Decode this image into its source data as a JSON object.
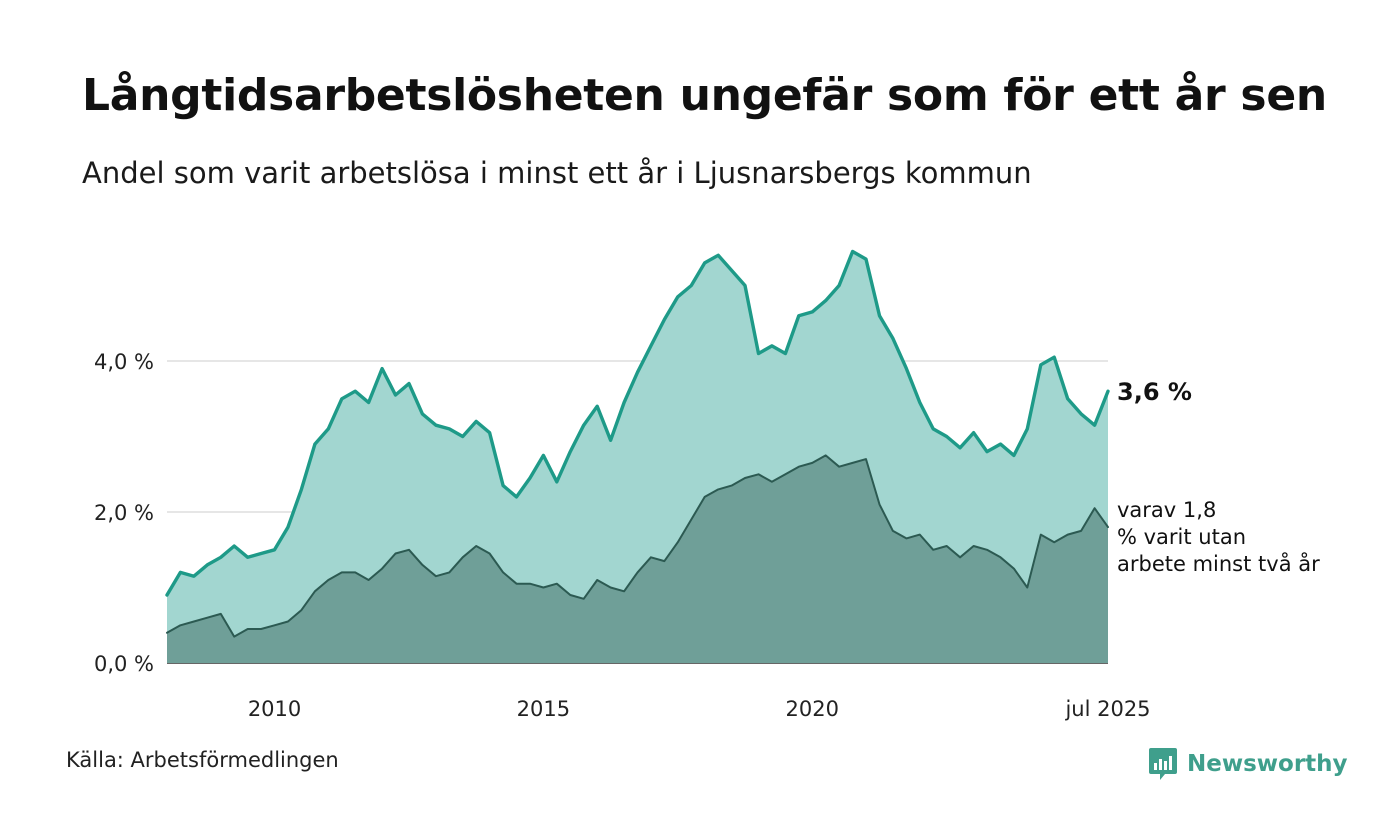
{
  "colors": {
    "total_line": "#1e9a88",
    "total_area": "#a2d6d0",
    "long_line": "#2c5a52",
    "long_area": "#6f9f98",
    "grid": "#dddddd",
    "axis": "#333333",
    "brand": "#3f9f8c"
  },
  "footer": {
    "source": "Källa: Arbetsförmedlingen",
    "brand": "Newsworthy",
    "brand_icon": "newsworthy-logo-icon"
  },
  "chart_data": {
    "type": "area",
    "title": "Långtidsarbetslösheten ungefär som för ett år sen",
    "subtitle": "Andel som varit arbetslösa i minst ett år i Ljusnarsbergs kommun",
    "xlabel": "",
    "ylabel": "",
    "x_range": [
      "2008-01",
      "2025-07"
    ],
    "ylim": [
      0,
      6
    ],
    "y_ticks": [
      {
        "value": 0,
        "label": "0,0 %"
      },
      {
        "value": 2,
        "label": "2,0 %"
      },
      {
        "value": 4,
        "label": "4,0 %"
      }
    ],
    "x_ticks": [
      {
        "value": "2010-01",
        "label": "2010"
      },
      {
        "value": "2015-01",
        "label": "2015"
      },
      {
        "value": "2020-01",
        "label": "2020"
      },
      {
        "value": "2025-07",
        "label": "jul 2025"
      }
    ],
    "grid": true,
    "legend": "none",
    "series": [
      {
        "key": "total",
        "label": "3,6 %",
        "points": [
          [
            "2008-01",
            0.9
          ],
          [
            "2008-04",
            1.2
          ],
          [
            "2008-07",
            1.15
          ],
          [
            "2008-10",
            1.3
          ],
          [
            "2009-01",
            1.4
          ],
          [
            "2009-04",
            1.55
          ],
          [
            "2009-07",
            1.4
          ],
          [
            "2009-10",
            1.45
          ],
          [
            "2010-01",
            1.5
          ],
          [
            "2010-04",
            1.8
          ],
          [
            "2010-07",
            2.3
          ],
          [
            "2010-10",
            2.9
          ],
          [
            "2011-01",
            3.1
          ],
          [
            "2011-04",
            3.5
          ],
          [
            "2011-07",
            3.6
          ],
          [
            "2011-10",
            3.45
          ],
          [
            "2012-01",
            3.9
          ],
          [
            "2012-04",
            3.55
          ],
          [
            "2012-07",
            3.7
          ],
          [
            "2012-10",
            3.3
          ],
          [
            "2013-01",
            3.15
          ],
          [
            "2013-04",
            3.1
          ],
          [
            "2013-07",
            3.0
          ],
          [
            "2013-10",
            3.2
          ],
          [
            "2014-01",
            3.05
          ],
          [
            "2014-04",
            2.35
          ],
          [
            "2014-07",
            2.2
          ],
          [
            "2014-10",
            2.45
          ],
          [
            "2015-01",
            2.75
          ],
          [
            "2015-04",
            2.4
          ],
          [
            "2015-07",
            2.8
          ],
          [
            "2015-10",
            3.15
          ],
          [
            "2016-01",
            3.4
          ],
          [
            "2016-04",
            2.95
          ],
          [
            "2016-07",
            3.45
          ],
          [
            "2016-10",
            3.85
          ],
          [
            "2017-01",
            4.2
          ],
          [
            "2017-04",
            4.55
          ],
          [
            "2017-07",
            4.85
          ],
          [
            "2017-10",
            5.0
          ],
          [
            "2018-01",
            5.3
          ],
          [
            "2018-04",
            5.4
          ],
          [
            "2018-07",
            5.2
          ],
          [
            "2018-10",
            5.0
          ],
          [
            "2019-01",
            4.1
          ],
          [
            "2019-04",
            4.2
          ],
          [
            "2019-07",
            4.1
          ],
          [
            "2019-10",
            4.6
          ],
          [
            "2020-01",
            4.65
          ],
          [
            "2020-04",
            4.8
          ],
          [
            "2020-07",
            5.0
          ],
          [
            "2020-10",
            5.45
          ],
          [
            "2021-01",
            5.35
          ],
          [
            "2021-04",
            4.6
          ],
          [
            "2021-07",
            4.3
          ],
          [
            "2021-10",
            3.9
          ],
          [
            "2022-01",
            3.45
          ],
          [
            "2022-04",
            3.1
          ],
          [
            "2022-07",
            3.0
          ],
          [
            "2022-10",
            2.85
          ],
          [
            "2023-01",
            3.05
          ],
          [
            "2023-04",
            2.8
          ],
          [
            "2023-07",
            2.9
          ],
          [
            "2023-10",
            2.75
          ],
          [
            "2024-01",
            3.1
          ],
          [
            "2024-04",
            3.95
          ],
          [
            "2024-07",
            4.05
          ],
          [
            "2024-10",
            3.5
          ],
          [
            "2025-01",
            3.3
          ],
          [
            "2025-04",
            3.15
          ],
          [
            "2025-07",
            3.6
          ]
        ]
      },
      {
        "key": "long",
        "label": "varav 1,8 % varit utan arbete minst två år",
        "points": [
          [
            "2008-01",
            0.4
          ],
          [
            "2008-04",
            0.5
          ],
          [
            "2008-07",
            0.55
          ],
          [
            "2008-10",
            0.6
          ],
          [
            "2009-01",
            0.65
          ],
          [
            "2009-04",
            0.35
          ],
          [
            "2009-07",
            0.45
          ],
          [
            "2009-10",
            0.45
          ],
          [
            "2010-01",
            0.5
          ],
          [
            "2010-04",
            0.55
          ],
          [
            "2010-07",
            0.7
          ],
          [
            "2010-10",
            0.95
          ],
          [
            "2011-01",
            1.1
          ],
          [
            "2011-04",
            1.2
          ],
          [
            "2011-07",
            1.2
          ],
          [
            "2011-10",
            1.1
          ],
          [
            "2012-01",
            1.25
          ],
          [
            "2012-04",
            1.45
          ],
          [
            "2012-07",
            1.5
          ],
          [
            "2012-10",
            1.3
          ],
          [
            "2013-01",
            1.15
          ],
          [
            "2013-04",
            1.2
          ],
          [
            "2013-07",
            1.4
          ],
          [
            "2013-10",
            1.55
          ],
          [
            "2014-01",
            1.45
          ],
          [
            "2014-04",
            1.2
          ],
          [
            "2014-07",
            1.05
          ],
          [
            "2014-10",
            1.05
          ],
          [
            "2015-01",
            1.0
          ],
          [
            "2015-04",
            1.05
          ],
          [
            "2015-07",
            0.9
          ],
          [
            "2015-10",
            0.85
          ],
          [
            "2016-01",
            1.1
          ],
          [
            "2016-04",
            1.0
          ],
          [
            "2016-07",
            0.95
          ],
          [
            "2016-10",
            1.2
          ],
          [
            "2017-01",
            1.4
          ],
          [
            "2017-04",
            1.35
          ],
          [
            "2017-07",
            1.6
          ],
          [
            "2017-10",
            1.9
          ],
          [
            "2018-01",
            2.2
          ],
          [
            "2018-04",
            2.3
          ],
          [
            "2018-07",
            2.35
          ],
          [
            "2018-10",
            2.45
          ],
          [
            "2019-01",
            2.5
          ],
          [
            "2019-04",
            2.4
          ],
          [
            "2019-07",
            2.5
          ],
          [
            "2019-10",
            2.6
          ],
          [
            "2020-01",
            2.65
          ],
          [
            "2020-04",
            2.75
          ],
          [
            "2020-07",
            2.6
          ],
          [
            "2020-10",
            2.65
          ],
          [
            "2021-01",
            2.7
          ],
          [
            "2021-04",
            2.1
          ],
          [
            "2021-07",
            1.75
          ],
          [
            "2021-10",
            1.65
          ],
          [
            "2022-01",
            1.7
          ],
          [
            "2022-04",
            1.5
          ],
          [
            "2022-07",
            1.55
          ],
          [
            "2022-10",
            1.4
          ],
          [
            "2023-01",
            1.55
          ],
          [
            "2023-04",
            1.5
          ],
          [
            "2023-07",
            1.4
          ],
          [
            "2023-10",
            1.25
          ],
          [
            "2024-01",
            1.0
          ],
          [
            "2024-04",
            1.7
          ],
          [
            "2024-07",
            1.6
          ],
          [
            "2024-10",
            1.7
          ],
          [
            "2025-01",
            1.75
          ],
          [
            "2025-04",
            2.05
          ],
          [
            "2025-07",
            1.8
          ]
        ]
      }
    ]
  }
}
